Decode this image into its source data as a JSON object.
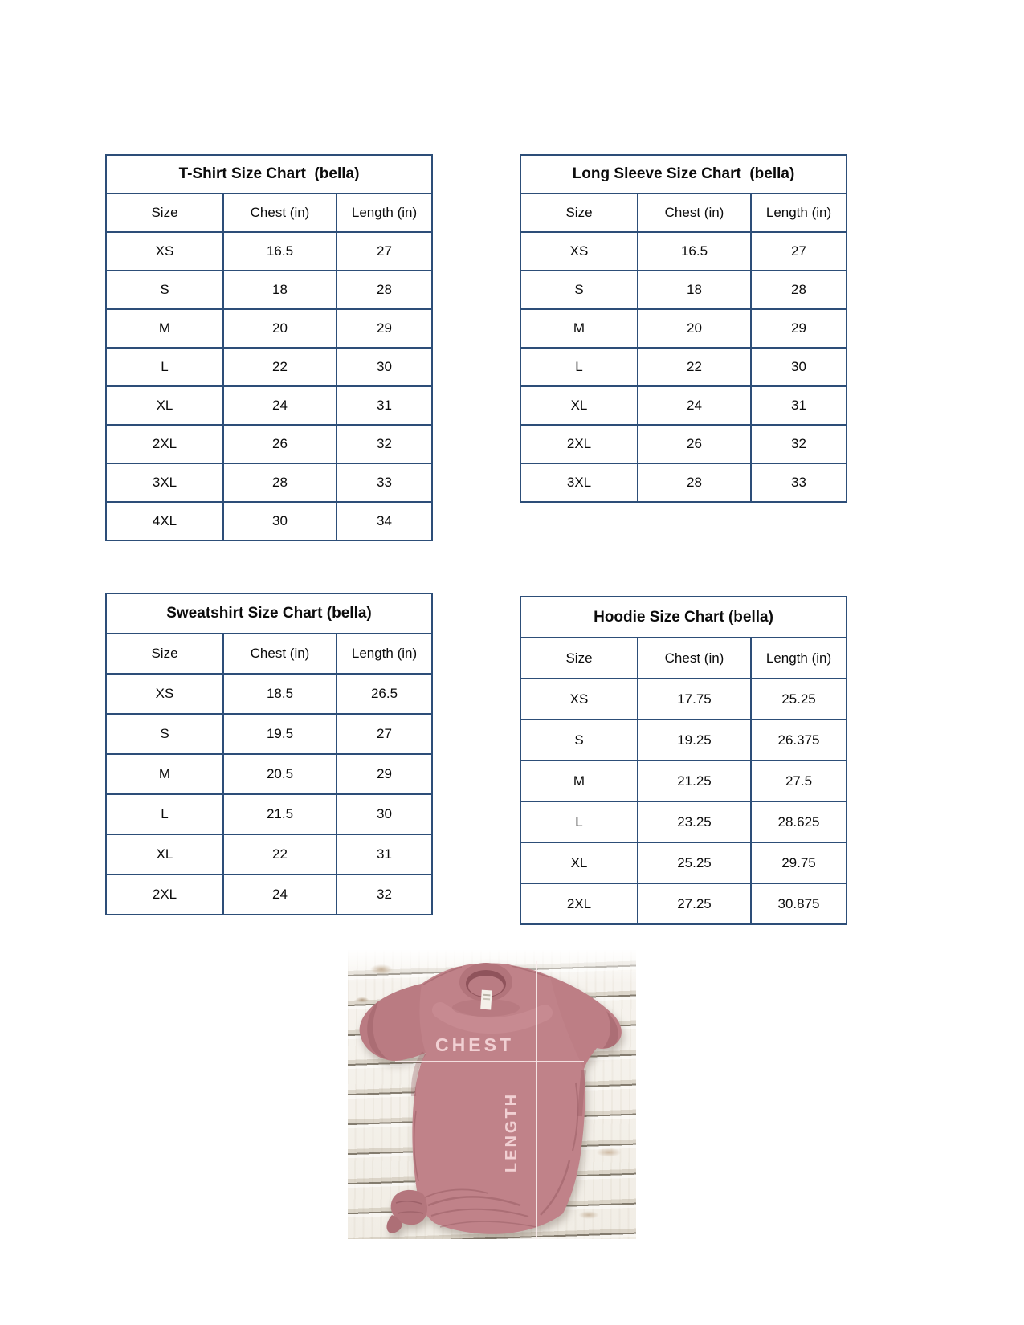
{
  "tables": [
    {
      "id": "tshirt",
      "title": "T-Shirt Size Chart  (bella)",
      "columns": [
        "Size",
        "Chest (in)",
        "Length (in)"
      ],
      "rows": [
        [
          "XS",
          "16.5",
          "27"
        ],
        [
          "S",
          "18",
          "28"
        ],
        [
          "M",
          "20",
          "29"
        ],
        [
          "L",
          "22",
          "30"
        ],
        [
          "XL",
          "24",
          "31"
        ],
        [
          "2XL",
          "26",
          "32"
        ],
        [
          "3XL",
          "28",
          "33"
        ],
        [
          "4XL",
          "30",
          "34"
        ]
      ]
    },
    {
      "id": "long-sleeve",
      "title": "Long Sleeve Size Chart  (bella)",
      "columns": [
        "Size",
        "Chest (in)",
        "Length (in)"
      ],
      "rows": [
        [
          "XS",
          "16.5",
          "27"
        ],
        [
          "S",
          "18",
          "28"
        ],
        [
          "M",
          "20",
          "29"
        ],
        [
          "L",
          "22",
          "30"
        ],
        [
          "XL",
          "24",
          "31"
        ],
        [
          "2XL",
          "26",
          "32"
        ],
        [
          "3XL",
          "28",
          "33"
        ]
      ]
    },
    {
      "id": "sweatshirt",
      "title": "Sweatshirt Size Chart (bella)",
      "columns": [
        "Size",
        "Chest (in)",
        "Length (in)"
      ],
      "rows": [
        [
          "XS",
          "18.5",
          "26.5"
        ],
        [
          "S",
          "19.5",
          "27"
        ],
        [
          "M",
          "20.5",
          "29"
        ],
        [
          "L",
          "21.5",
          "30"
        ],
        [
          "XL",
          "22",
          "31"
        ],
        [
          "2XL",
          "24",
          "32"
        ]
      ]
    },
    {
      "id": "hoodie",
      "title": "Hoodie Size Chart (bella)",
      "columns": [
        "Size",
        "Chest (in)",
        "Length (in)"
      ],
      "rows": [
        [
          "XS",
          "17.75",
          "25.25"
        ],
        [
          "S",
          "19.25",
          "26.375"
        ],
        [
          "M",
          "21.25",
          "27.5"
        ],
        [
          "L",
          "23.25",
          "28.625"
        ],
        [
          "XL",
          "25.25",
          "29.75"
        ],
        [
          "2XL",
          "27.25",
          "30.875"
        ]
      ]
    }
  ],
  "figure": {
    "chest_label": "CHEST",
    "length_label": "LENGTH",
    "shirt_color": "#c08289",
    "line_color": "#f8ecec",
    "wood_color": "#f6f3ee"
  },
  "colors": {
    "table_border": "#2d4e78",
    "text": "#0b0b0b"
  }
}
